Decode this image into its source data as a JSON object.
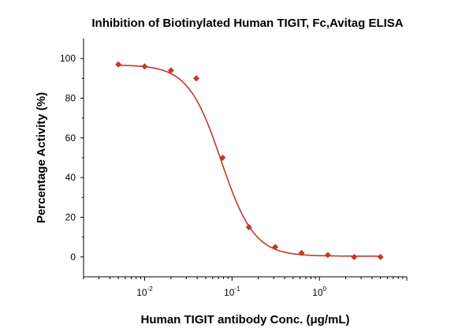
{
  "chart_data": {
    "type": "scatter",
    "title": "Inhibition of Biotinylated Human TIGIT, Fc,Avitag ELISA",
    "xlabel": "Human TIGIT antibody Conc. (μg/mL)",
    "ylabel": "Percentage Activity (%)",
    "x_scale": "log",
    "xlim": [
      0.002,
      10
    ],
    "ylim": [
      -10,
      110
    ],
    "x_ticks": [
      {
        "value": 0.01,
        "base": "10",
        "exp": "-2"
      },
      {
        "value": 0.1,
        "base": "10",
        "exp": "-1"
      },
      {
        "value": 1,
        "base": "10",
        "exp": "0"
      }
    ],
    "y_ticks": [
      0,
      20,
      40,
      60,
      80,
      100
    ],
    "grid": false,
    "legend": "none",
    "series": [
      {
        "marker": "diamond",
        "color": "#c0392b",
        "x": [
          0.005,
          0.01,
          0.02,
          0.039,
          0.078,
          0.156,
          0.3125,
          0.625,
          1.25,
          2.5,
          5
        ],
        "y": [
          97,
          96,
          94,
          90,
          50,
          15,
          5,
          2,
          1,
          0,
          0
        ]
      }
    ],
    "fit": {
      "model": "four-parameter logistic",
      "color": "#c0392b",
      "top": 96.8,
      "bottom": 0.4,
      "ec50": 0.075,
      "hill": 2.3,
      "x_range": [
        0.005,
        5
      ]
    }
  }
}
